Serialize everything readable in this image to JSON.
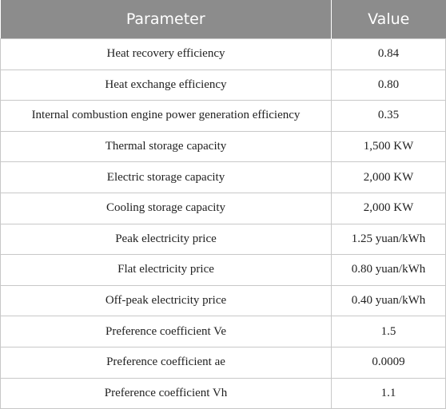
{
  "table": {
    "headers": [
      "Parameter",
      "Value"
    ],
    "rows": [
      {
        "parameter": "Heat recovery efficiency",
        "value": "0.84"
      },
      {
        "parameter": "Heat exchange efficiency",
        "value": "0.80"
      },
      {
        "parameter": "Internal combustion engine power generation efficiency",
        "value": "0.35"
      },
      {
        "parameter": "Thermal storage capacity",
        "value": "1,500 KW"
      },
      {
        "parameter": "Electric storage capacity",
        "value": "2,000 KW"
      },
      {
        "parameter": "Cooling storage capacity",
        "value": "2,000 KW"
      },
      {
        "parameter": "Peak electricity price",
        "value": "1.25 yuan/kWh"
      },
      {
        "parameter": "Flat electricity price",
        "value": "0.80 yuan/kWh"
      },
      {
        "parameter": "Off-peak electricity price",
        "value": "0.40 yuan/kWh"
      },
      {
        "parameter": "Preference coefficient Ve",
        "value": "1.5"
      },
      {
        "parameter": "Preference coefficient ae",
        "value": "0.0009"
      },
      {
        "parameter": "Preference coefficient Vh",
        "value": "1.1"
      }
    ]
  },
  "colors": {
    "header_background": "#8c8c8c",
    "header_text": "#ffffff",
    "grid_line": "#c8c8c8"
  }
}
